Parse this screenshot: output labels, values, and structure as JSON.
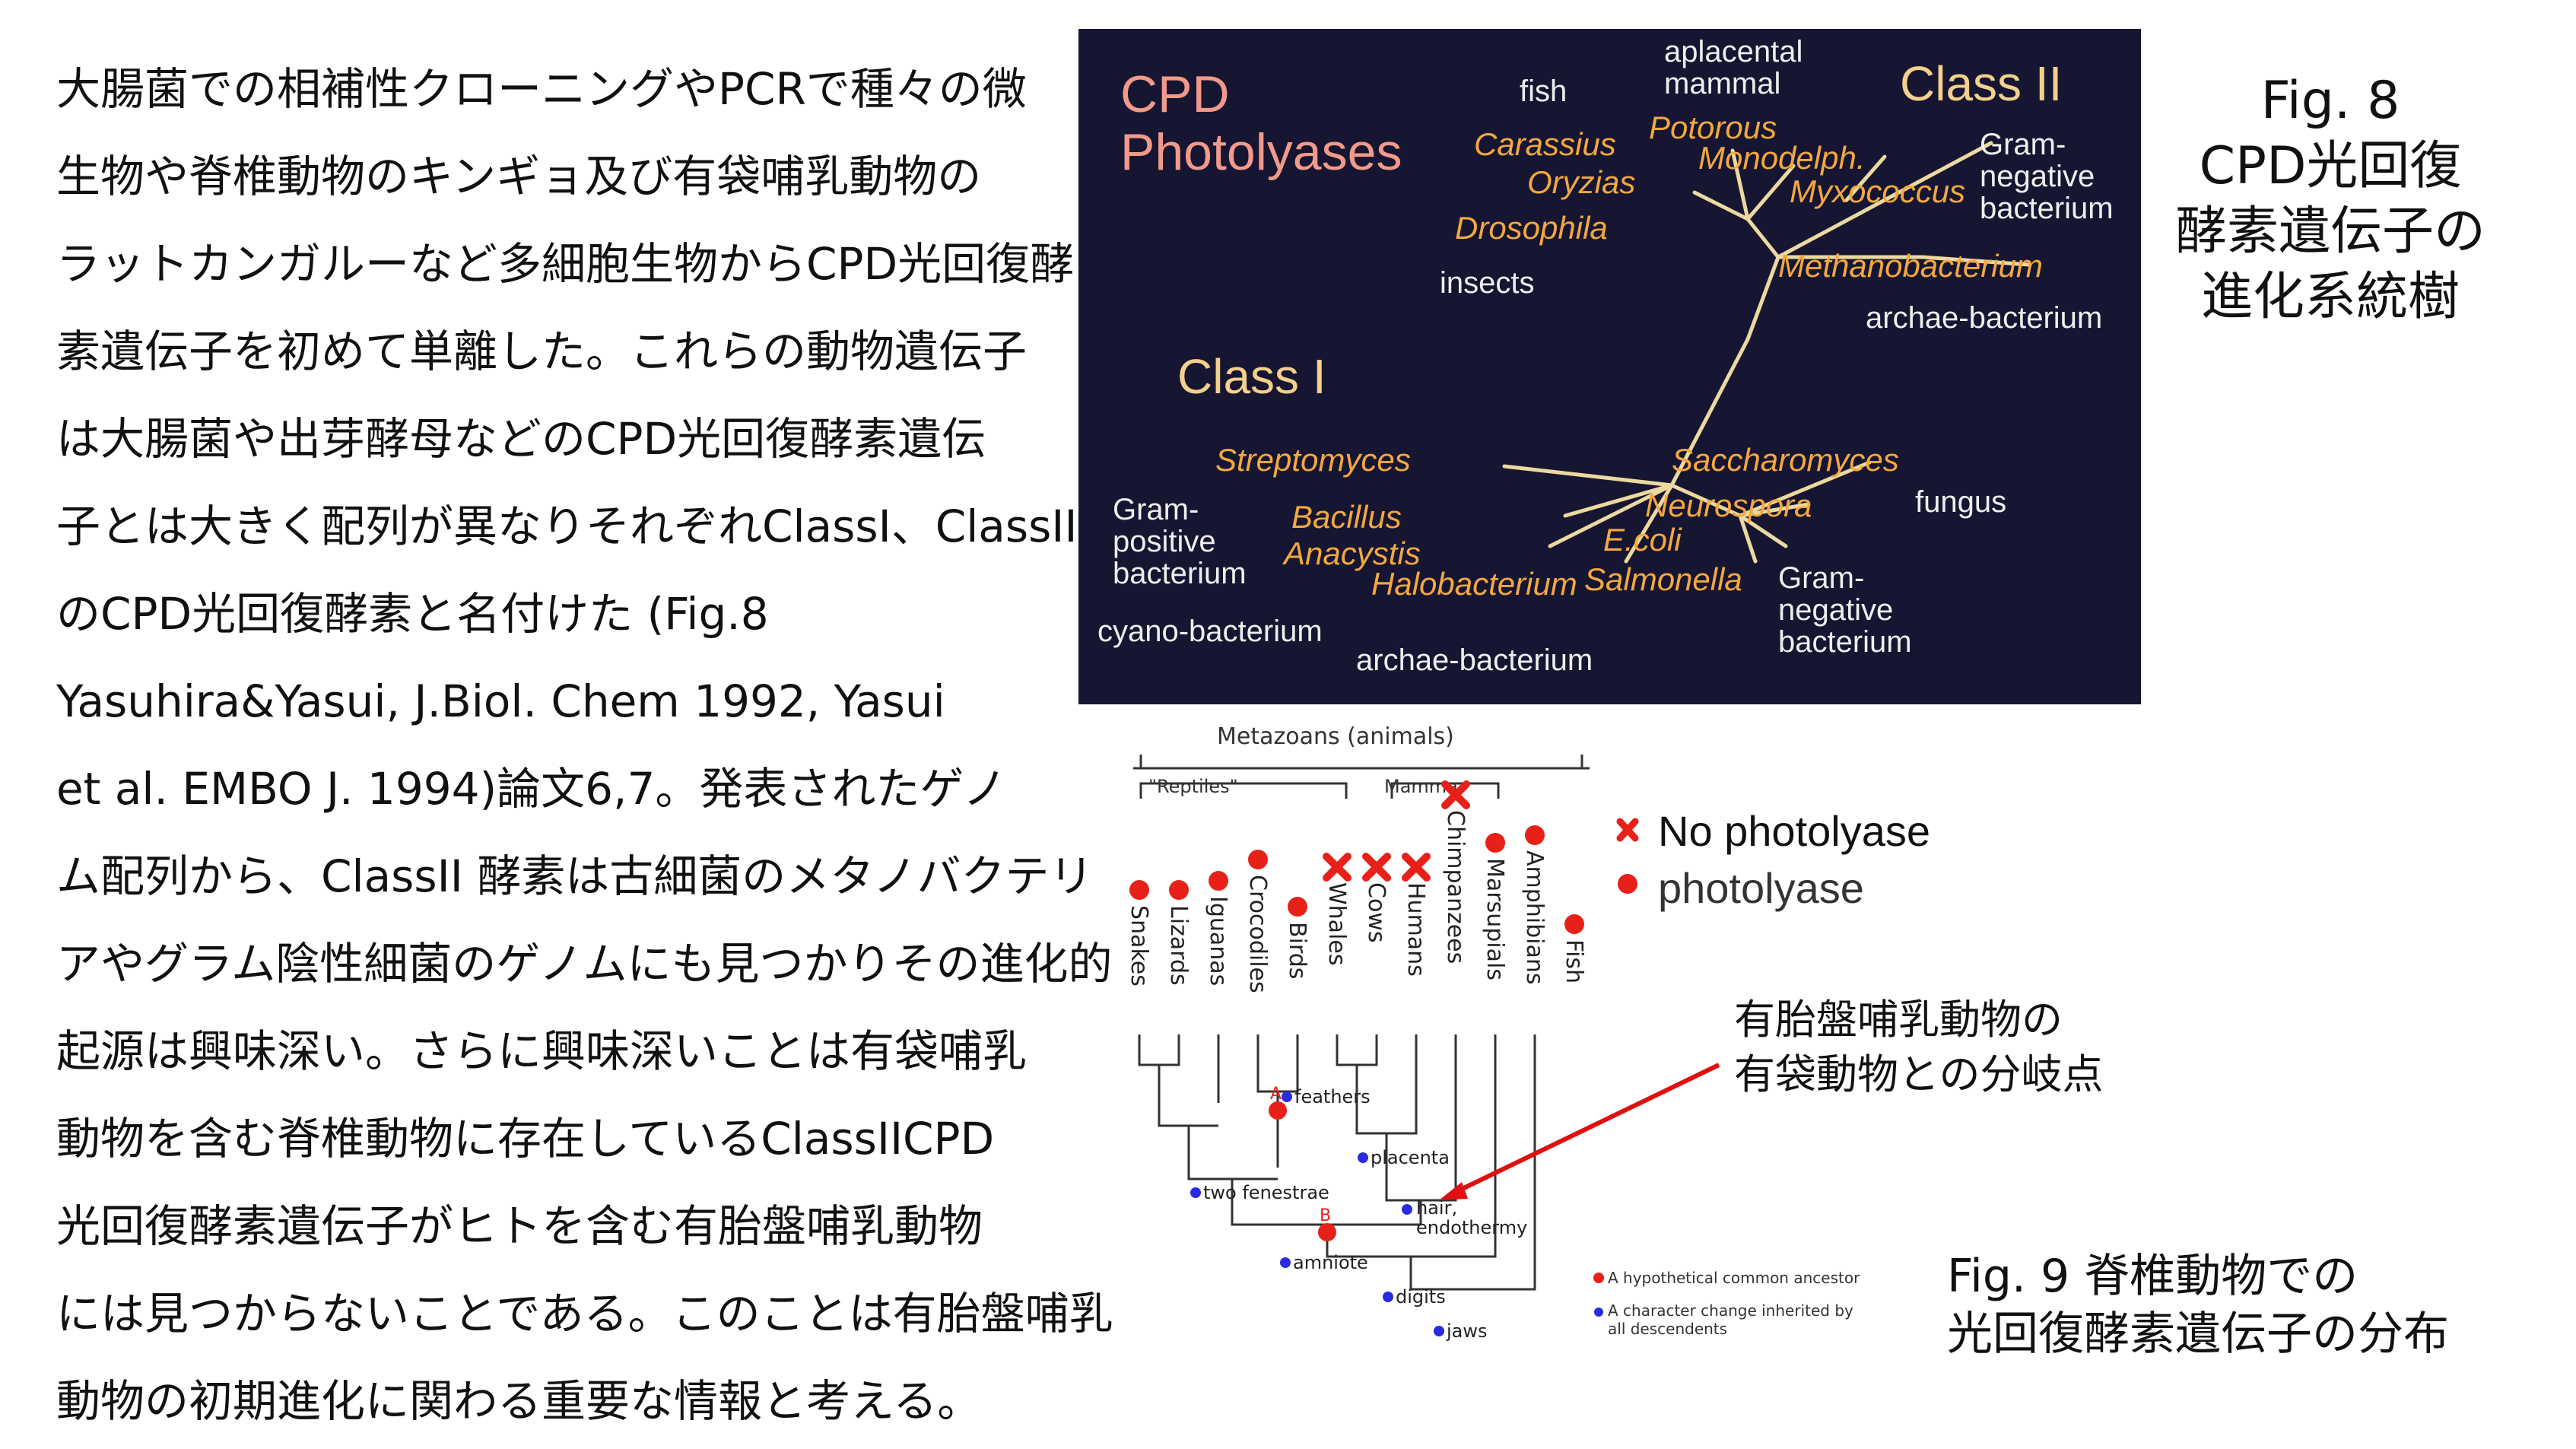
{
  "body_text": {
    "lines": [
      "大腸菌での相補性クローニングやPCRで種々の微",
      "生物や脊椎動物のキンギョ及び有袋哺乳動物の",
      "ラットカンガルーなど多細胞生物からCPD光回復酵",
      "素遺伝子を初めて単離した。これらの動物遺伝子",
      "は大腸菌や出芽酵母などのCPD光回復酵素遺伝",
      "子とは大きく配列が異なりそれぞれClassI、ClassII",
      "のCPD光回復酵素と名付けた (Fig.8",
      "Yasuhira&Yasui, J.Biol. Chem 1992, Yasui",
      "et al. EMBO J. 1994)論文6,7。発表されたゲノ",
      "ム配列から、ClassII 酵素は古細菌のメタノバクテリ",
      "アやグラム陰性細菌のゲノムにも見つかりその進化的",
      "起源は興味深い。さらに興味深いことは有袋哺乳",
      "動物を含む脊椎動物に存在しているClassIICPD",
      "光回復酵素遺伝子がヒトを含む有胎盤哺乳動物",
      "には見つからないことである。このことは有胎盤哺乳",
      "動物の初期進化に関わる重要な情報と考える。"
    ]
  },
  "fig8": {
    "caption_lines": [
      "Fig. 8",
      "CPD光回復",
      "酵素遺伝子の",
      "進化系統樹"
    ],
    "title_line1": "CPD",
    "title_line2": "Photolyases",
    "class2": "Class II",
    "class1": "Class I",
    "labels": {
      "fish": "fish",
      "aplacental1": "aplacental",
      "aplacental2": "mammal",
      "carassius": "Carassius",
      "potorous": "Potorous",
      "monodelph": "Monodelph.",
      "oryzias": "Oryzias",
      "myxococcus": "Myxococcus",
      "gramneg_top1": "Gram-",
      "gramneg_top2": "negative",
      "gramneg_top3": "bacterium",
      "drosophila": "Drosophila",
      "insects": "insects",
      "methanobacterium": "Methanobacterium",
      "archae_top": "archae-bacterium",
      "streptomyces": "Streptomyces",
      "saccharomyces": "Saccharomyces",
      "grampos1": "Gram-",
      "grampos2": "positive",
      "grampos3": "bacterium",
      "bacillus": "Bacillus",
      "neurospora": "Neurospora",
      "fungus": "fungus",
      "anacystis": "Anacystis",
      "ecoli": "E.coli",
      "halobacterium": "Halobacterium",
      "salmonella": "Salmonella",
      "gramneg_bot1": "Gram-",
      "gramneg_bot2": "negative",
      "gramneg_bot3": "bacterium",
      "cyano": "cyano-bacterium",
      "archae_bottom": "archae-bacterium"
    }
  },
  "fig9": {
    "caption_line1": "Fig. 9  脊椎動物での",
    "caption_line2": "光回復酵素遺伝子の分布",
    "metazoans": "Metazoans (animals)",
    "reptiles": "\"Reptiles\"",
    "mammals": "Mamma",
    "taxa": [
      "Snakes",
      "Lizards",
      "Iguanas",
      "Crocodiles",
      "Birds",
      "Whales",
      "Cows",
      "Humans",
      "Chimpanzees",
      "Marsupials",
      "Amphibians",
      "Fish"
    ],
    "photolyase_status": [
      "present",
      "present",
      "present",
      "present",
      "present",
      "absent",
      "absent",
      "absent",
      "absent",
      "present",
      "present",
      "present"
    ],
    "characters": [
      "feathers",
      "placenta",
      "two fenestrae",
      "hair,",
      "endothermy",
      "amniote",
      "digits",
      "jaws"
    ],
    "ancestor_a": "A",
    "ancestor_b": "B",
    "legend_no": "No photolyase",
    "legend_yes": "photolyase",
    "small_legend_red": "A hypothetical common ancestor",
    "small_legend_blue1": "A character change inherited by",
    "small_legend_blue2": "all descendents",
    "note_line1": "有胎盤哺乳動物の",
    "note_line2": "有袋動物との分岐点",
    "colors": {
      "present": "#e8201a",
      "absent": "#e8201a",
      "character": "#2a2ae0",
      "arrow": "#e01010"
    }
  }
}
